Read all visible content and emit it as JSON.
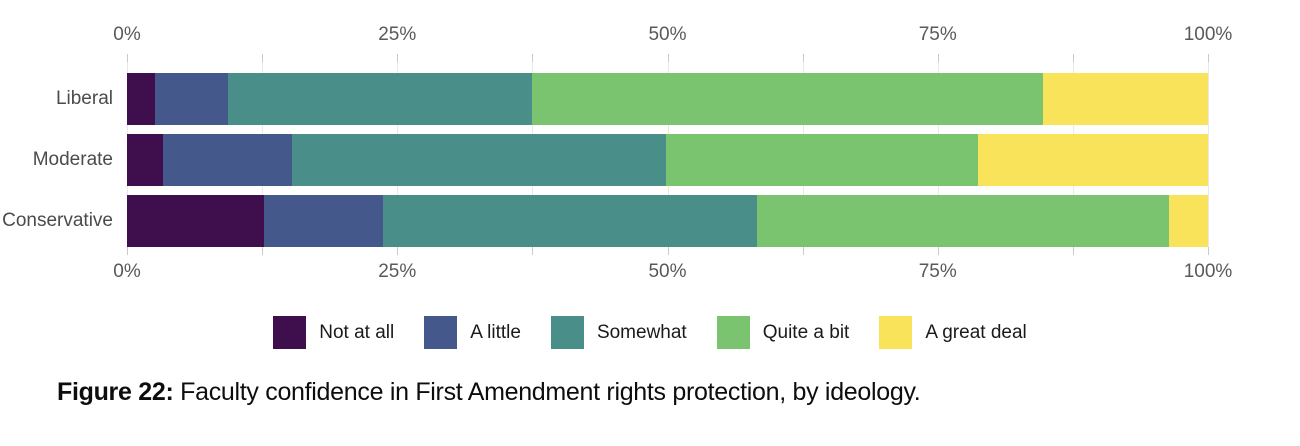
{
  "chart_data": {
    "type": "bar",
    "orientation": "horizontal",
    "stacked": true,
    "grid": true,
    "categories": [
      "Liberal",
      "Moderate",
      "Conservative"
    ],
    "series": [
      {
        "name": "Not at all",
        "color": "#3e0f4c",
        "values": [
          2.6,
          3.3,
          12.7
        ]
      },
      {
        "name": "A little",
        "color": "#45588c",
        "values": [
          6.7,
          12.0,
          11.0
        ]
      },
      {
        "name": "Somewhat",
        "color": "#4a8e8a",
        "values": [
          28.2,
          34.6,
          34.6
        ]
      },
      {
        "name": "Quite a bit",
        "color": "#7ac46f",
        "values": [
          47.2,
          28.8,
          38.1
        ]
      },
      {
        "name": "A great deal",
        "color": "#f8e35b",
        "values": [
          15.3,
          21.3,
          3.6
        ]
      }
    ],
    "xlim": [
      0,
      100
    ],
    "x_axis": {
      "tick_labels": [
        "0%",
        "25%",
        "50%",
        "75%",
        "100%"
      ],
      "tick_values": [
        0,
        25,
        50,
        75,
        100
      ],
      "minor_tick_values": [
        12.5,
        37.5,
        62.5,
        87.5
      ],
      "shown_on": "top and bottom"
    },
    "legend_position": "bottom",
    "title": "",
    "xlabel": "",
    "ylabel": ""
  },
  "caption": {
    "prefix": "Figure 22:",
    "text": " Faculty confidence in First Amendment rights protection, by ideology."
  }
}
